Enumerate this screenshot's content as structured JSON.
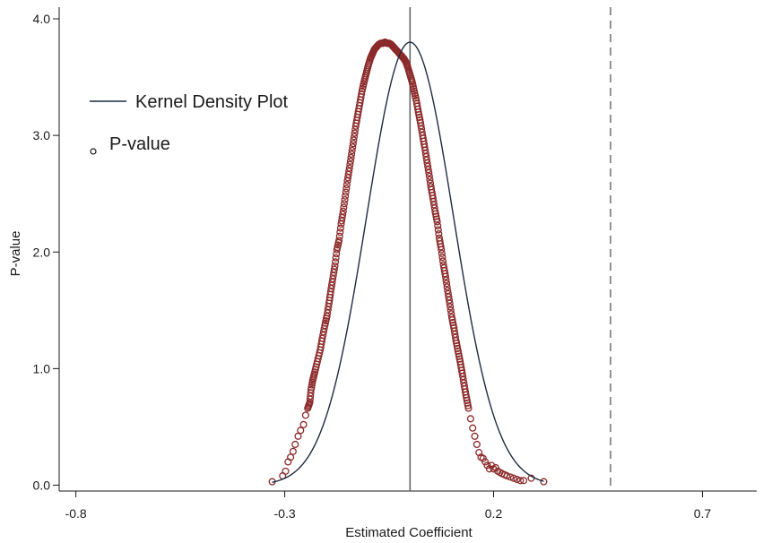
{
  "chart_data": {
    "type": "scatter",
    "xlabel": "Estimated Coefficient",
    "ylabel": "P-value",
    "xlim": [
      -0.84,
      0.83
    ],
    "ylim": [
      -0.05,
      4.1
    ],
    "xticks": [
      -0.8,
      -0.3,
      0.2,
      0.7
    ],
    "xtick_labels": [
      "-0.8",
      "-0.3",
      "0.2",
      "0.7"
    ],
    "yticks": [
      0,
      1,
      2,
      3,
      4
    ],
    "ytick_labels": [
      "0.0",
      "1.0",
      "2.0",
      "3.0",
      "4.0"
    ],
    "grid": false,
    "legend_position": "top-left",
    "legend": [
      {
        "label": "Kernel Density Plot",
        "marker": "line",
        "color": "#1f2a44"
      },
      {
        "label": "P-value",
        "marker": "hollow-circle",
        "color": "#8b2a2a"
      }
    ],
    "reference_lines": [
      {
        "x": 0.0,
        "style": "solid",
        "color": "#666666"
      },
      {
        "x": 0.48,
        "style": "dashed",
        "color": "#777777"
      }
    ],
    "kernel_density": {
      "name": "Kernel Density Plot",
      "mean": 0.0,
      "sd": 0.104,
      "peak": 3.8,
      "x_range": [
        -0.33,
        0.32
      ]
    },
    "series": [
      {
        "name": "P-value",
        "x": [
          -0.33,
          -0.305,
          -0.298,
          -0.292,
          -0.286,
          -0.28,
          -0.275,
          -0.268,
          -0.262,
          -0.255,
          -0.25,
          -0.245,
          -0.24,
          -0.237,
          -0.233,
          -0.228,
          -0.222,
          -0.215,
          -0.21,
          -0.204,
          -0.199,
          -0.194,
          -0.19,
          -0.185,
          -0.18,
          -0.175,
          -0.17,
          -0.165,
          -0.16,
          -0.155,
          -0.15,
          -0.145,
          -0.14,
          -0.135,
          -0.13,
          -0.125,
          -0.12,
          -0.115,
          -0.11,
          -0.105,
          -0.1,
          -0.095,
          -0.09,
          -0.085,
          -0.08,
          -0.075,
          -0.07,
          -0.065,
          -0.06,
          -0.055,
          -0.05,
          -0.045,
          -0.04,
          -0.035,
          -0.03,
          -0.025,
          -0.02,
          -0.015,
          -0.01,
          -0.005,
          0.0,
          0.005,
          0.01,
          0.015,
          0.02,
          0.025,
          0.03,
          0.035,
          0.04,
          0.045,
          0.05,
          0.055,
          0.06,
          0.065,
          0.07,
          0.075,
          0.08,
          0.085,
          0.09,
          0.095,
          0.1,
          0.105,
          0.11,
          0.115,
          0.12,
          0.125,
          0.13,
          0.135,
          0.14,
          0.145,
          0.15,
          0.155,
          0.16,
          0.165,
          0.17,
          0.175,
          0.18,
          0.185,
          0.19,
          0.195,
          0.2,
          0.205,
          0.21,
          0.215,
          0.22,
          0.226,
          0.232,
          0.24,
          0.248,
          0.256,
          0.264,
          0.272,
          0.29,
          0.32
        ],
        "y": [
          0.03,
          0.08,
          0.12,
          0.2,
          0.24,
          0.29,
          0.35,
          0.42,
          0.47,
          0.52,
          0.6,
          0.66,
          0.71,
          0.82,
          0.9,
          0.97,
          1.06,
          1.16,
          1.26,
          1.37,
          1.45,
          1.56,
          1.66,
          1.77,
          1.88,
          2.02,
          2.1,
          2.24,
          2.35,
          2.48,
          2.61,
          2.72,
          2.84,
          2.96,
          3.08,
          3.18,
          3.28,
          3.38,
          3.46,
          3.53,
          3.6,
          3.66,
          3.7,
          3.74,
          3.76,
          3.78,
          3.79,
          3.79,
          3.8,
          3.79,
          3.79,
          3.78,
          3.76,
          3.74,
          3.72,
          3.7,
          3.68,
          3.66,
          3.63,
          3.58,
          3.52,
          3.46,
          3.38,
          3.3,
          3.2,
          3.11,
          3.0,
          2.9,
          2.79,
          2.68,
          2.56,
          2.46,
          2.35,
          2.26,
          2.12,
          2.02,
          1.89,
          1.79,
          1.67,
          1.56,
          1.44,
          1.35,
          1.24,
          1.15,
          1.06,
          0.96,
          0.85,
          0.75,
          0.66,
          0.57,
          0.49,
          0.42,
          0.35,
          0.28,
          0.24,
          0.23,
          0.2,
          0.17,
          0.14,
          0.17,
          0.14,
          0.15,
          0.12,
          0.11,
          0.1,
          0.09,
          0.08,
          0.07,
          0.06,
          0.05,
          0.04,
          0.04,
          0.06,
          0.03
        ]
      }
    ]
  }
}
